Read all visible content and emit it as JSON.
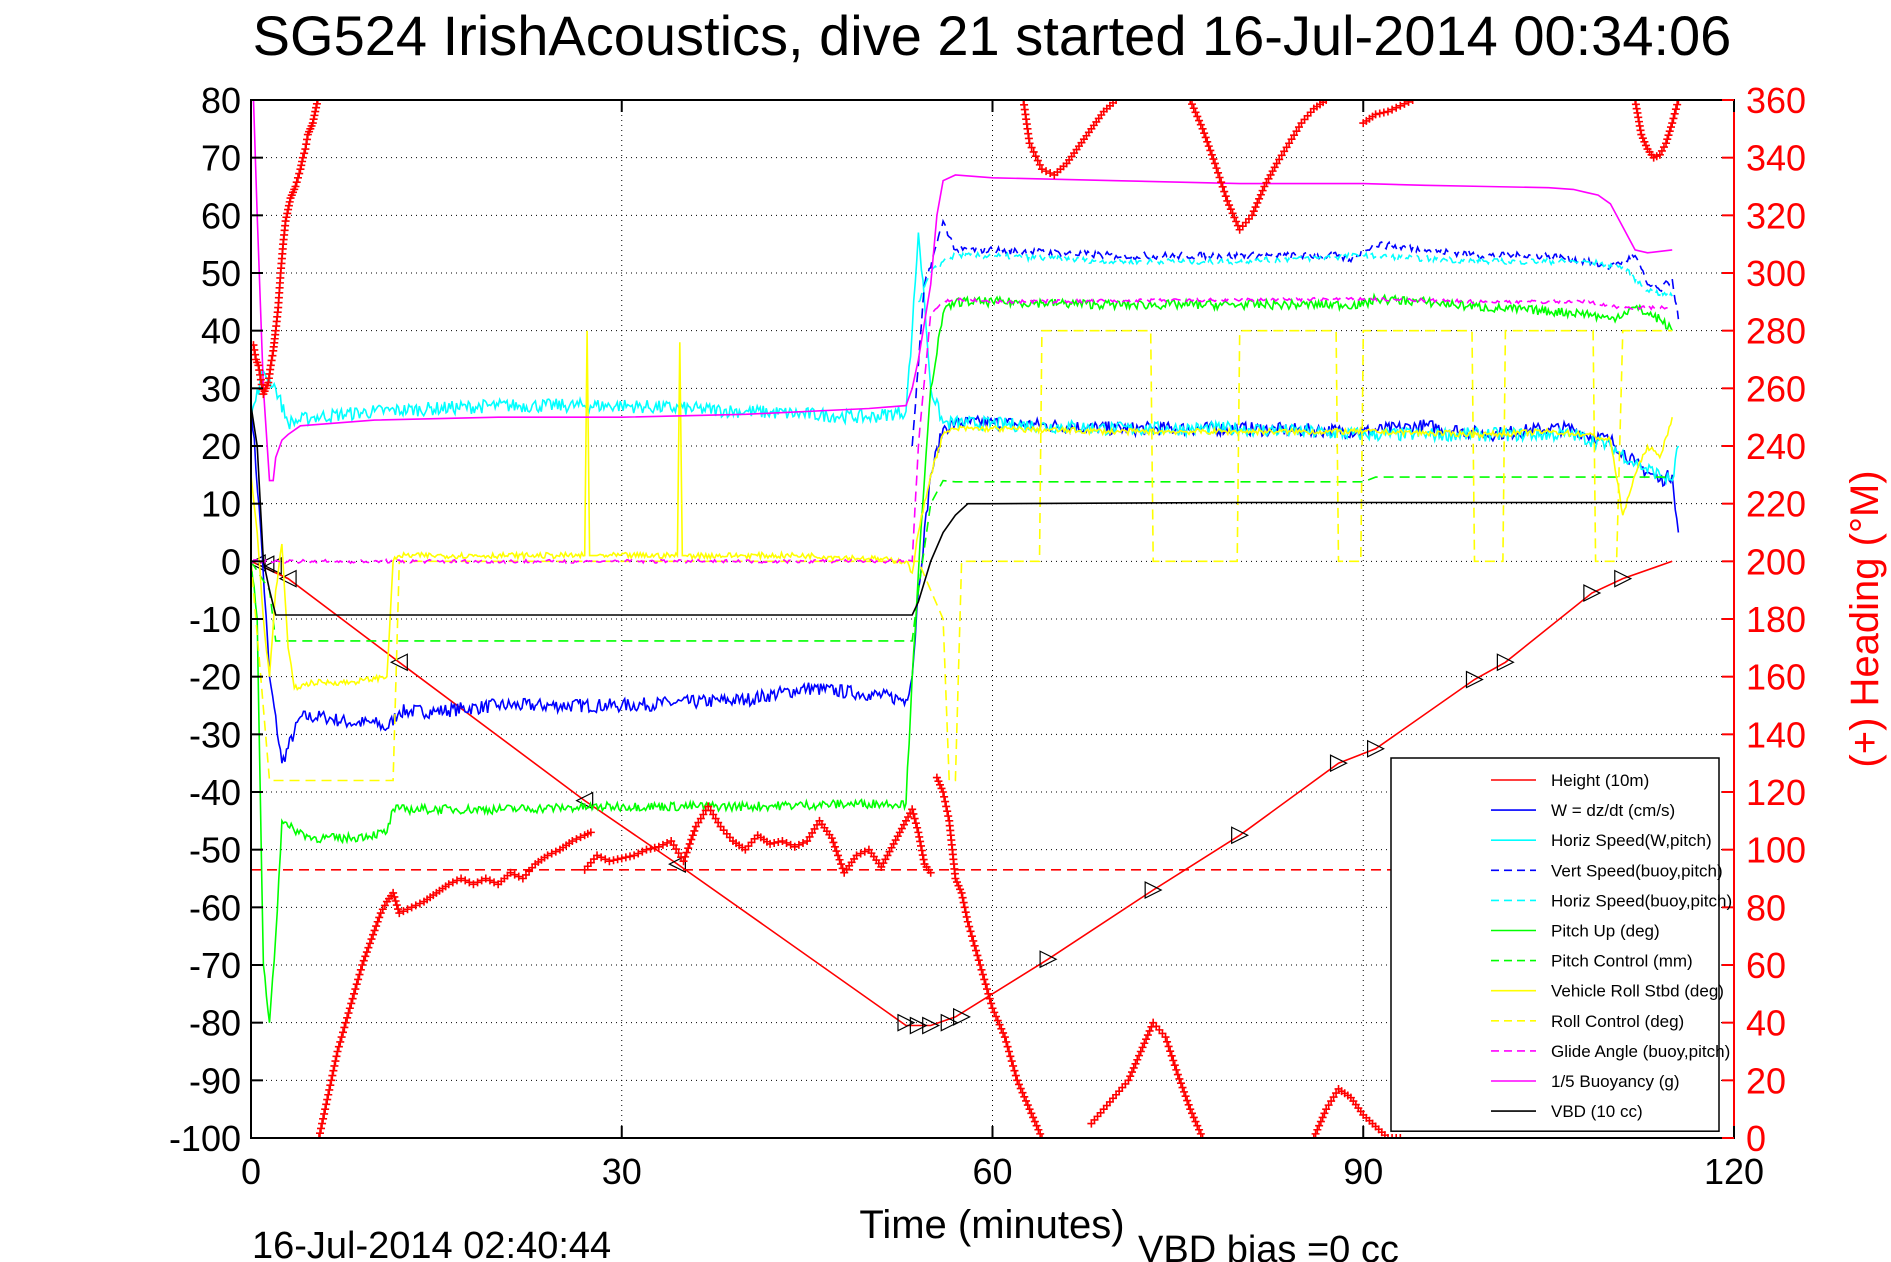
{
  "chart_data": {
    "type": "line",
    "title": "SG524 IrishAcoustics, dive 21 started 16-Jul-2014 00:34:06",
    "xlabel": "Time (minutes)",
    "ylabel": "",
    "y2label": "(+) Heading (°M)",
    "footer_left": "16-Jul-2014 02:40:44",
    "footer_right": "VBD bias =0 cc",
    "xlim": [
      0,
      120
    ],
    "ylim": [
      -100,
      80
    ],
    "y2lim": [
      0,
      360
    ],
    "xticks": [
      "0",
      "30",
      "60",
      "90",
      "120"
    ],
    "yticks": [
      "80",
      "70",
      "60",
      "50",
      "40",
      "30",
      "20",
      "10",
      "0",
      "-10",
      "-20",
      "-30",
      "-40",
      "-50",
      "-60",
      "-70",
      "-80",
      "-90",
      "-100"
    ],
    "y2ticks": [
      "360",
      "340",
      "320",
      "300",
      "280",
      "260",
      "240",
      "220",
      "200",
      "180",
      "160",
      "140",
      "120",
      "100",
      "80",
      "60",
      "40",
      "20",
      "0"
    ],
    "grid": true,
    "legend_position": "bottom-right",
    "series": [
      {
        "name": "Height (10m)",
        "color": "#ff0000",
        "dash": "solid",
        "x": [
          0,
          0.5,
          1,
          3,
          12,
          27,
          34.5,
          53,
          55,
          57,
          64.5,
          73,
          80,
          88,
          91,
          99,
          101.5,
          108.5,
          111,
          115
        ],
        "y": [
          0,
          -0.5,
          -1,
          -3,
          -17.5,
          -41.5,
          -52.5,
          -80.5,
          -80.5,
          -79,
          -69,
          -57,
          -47.5,
          -35,
          -32.5,
          -20.5,
          -17.5,
          -5.5,
          -3,
          0
        ],
        "marker_x": [
          0.5,
          1.2,
          1.8,
          3,
          12,
          27,
          34.5,
          53,
          54,
          55,
          56.5,
          57.5,
          64.5,
          73,
          80,
          88,
          91,
          99,
          101.5,
          108.5,
          111
        ],
        "marker_y": [
          -0.3,
          -0.5,
          -0.8,
          -3,
          -17.5,
          -41.5,
          -52.5,
          -80,
          -80.5,
          -80.5,
          -80,
          -79,
          -69,
          -57,
          -47.5,
          -35,
          -32.5,
          -20.5,
          -17.5,
          -5.5,
          -3
        ]
      },
      {
        "name": "W = dz/dt (cm/s)",
        "color": "#0000ff",
        "dash": "solid",
        "x": [
          0,
          0.8,
          1.5,
          2.5,
          4,
          6,
          8,
          10,
          11,
          12,
          15,
          20,
          30,
          40,
          45,
          50,
          53,
          53.5,
          54,
          55,
          56,
          57,
          60,
          70,
          80,
          90,
          95,
          100,
          105,
          107,
          108,
          110,
          112,
          114,
          115,
          115.5
        ],
        "y": [
          28,
          5,
          -20,
          -35,
          -27,
          -27,
          -28,
          -28,
          -29,
          -26,
          -26,
          -25,
          -25,
          -24,
          -22,
          -23,
          -24,
          -20,
          -5,
          15,
          23,
          24,
          24,
          23,
          23,
          22.5,
          23.5,
          22,
          23,
          23,
          22,
          21,
          17,
          14,
          15,
          5
        ],
        "jitter": 1.2
      },
      {
        "name": "Horiz Speed(W,pitch)",
        "color": "#00ffff",
        "dash": "solid",
        "x": [
          0,
          1,
          2,
          3,
          5,
          10,
          20,
          30,
          40,
          50,
          53,
          53.5,
          54,
          54.5,
          55,
          56,
          58,
          70,
          80,
          90,
          100,
          107,
          110,
          112,
          114,
          115,
          115.5
        ],
        "y": [
          25,
          33,
          30,
          24,
          25,
          26,
          27,
          27,
          26,
          25,
          26,
          40,
          57,
          45,
          30,
          24,
          24,
          23,
          23,
          22,
          22,
          22,
          20,
          17,
          15,
          14,
          20
        ],
        "jitter": 1.2
      },
      {
        "name": "Vert Speed(buoy,pitch)",
        "color": "#0000ff",
        "dash": "dashed",
        "x": [
          53.5,
          54.5,
          55.5,
          56,
          57,
          60,
          70,
          80,
          88,
          89,
          90,
          91,
          95,
          100,
          105,
          108,
          110,
          112,
          113,
          114,
          115,
          115.5
        ],
        "y": [
          20,
          48,
          55,
          59,
          54,
          54,
          53,
          53,
          53,
          52,
          54,
          55,
          54,
          53,
          53,
          52,
          51,
          53,
          48,
          47,
          49,
          42
        ],
        "jitter": 0.6
      },
      {
        "name": "Horiz Speed(buoy,pitch)",
        "color": "#00ffff",
        "dash": "dashed",
        "x": [
          54,
          55,
          56,
          57,
          60,
          70,
          80,
          90,
          100,
          108,
          111,
          113,
          115
        ],
        "y": [
          45,
          50,
          52,
          53,
          53,
          52,
          52,
          53,
          52,
          52,
          51,
          47,
          46
        ],
        "jitter": 0.5
      },
      {
        "name": "Pitch Up (deg)",
        "color": "#00ff00",
        "dash": "solid",
        "x": [
          0,
          0.5,
          1,
          1.5,
          2,
          2.5,
          3,
          5,
          8,
          11,
          11.5,
          12,
          20,
          30,
          40,
          50,
          53,
          53.5,
          54,
          55,
          56,
          57,
          60,
          70,
          80,
          90,
          91,
          95,
          100,
          108,
          110,
          112,
          114,
          115
        ],
        "y": [
          0,
          -10,
          -70,
          -80,
          -65,
          -45,
          -46,
          -48,
          -48,
          -47,
          -43,
          -43,
          -43,
          -42.5,
          -42.5,
          -42,
          -42,
          -20,
          -2,
          30,
          43,
          45,
          45,
          44.5,
          44.5,
          44.5,
          45.5,
          45,
          44,
          43,
          42,
          44,
          42,
          40
        ],
        "jitter": 0.8
      },
      {
        "name": "Pitch Control (mm)",
        "color": "#00ff00",
        "dash": "dashed",
        "x": [
          0,
          1.5,
          2,
          53.5,
          54,
          55,
          56,
          57,
          90,
          91,
          115
        ],
        "y": [
          0,
          -5,
          -13.8,
          -13.8,
          -5,
          10,
          14,
          13.8,
          13.8,
          14.6,
          14.6
        ]
      },
      {
        "name": "Vehicle Roll Stbd (deg)",
        "color": "#ffff00",
        "dash": "solid",
        "x": [
          0,
          0.5,
          1,
          1.5,
          2,
          2.5,
          3,
          3.5,
          5,
          8,
          11,
          11.5,
          12,
          27,
          27.2,
          27.4,
          27.6,
          28,
          34.5,
          34.7,
          34.9,
          35.2,
          40,
          45,
          50,
          53,
          53.5,
          54,
          55,
          56,
          57,
          60,
          70,
          80,
          90,
          100,
          105,
          108,
          110,
          111,
          112,
          113,
          114,
          115
        ],
        "y": [
          15,
          5,
          -10,
          -20,
          -5,
          3,
          -15,
          -22,
          -21,
          -21,
          -20,
          0,
          1,
          1,
          40,
          1,
          1,
          1,
          1,
          38,
          1,
          1,
          1,
          1,
          0.5,
          0,
          -2,
          5,
          15,
          22,
          23,
          23,
          22.5,
          22.5,
          22.5,
          22,
          22.5,
          22,
          21,
          8,
          15,
          20,
          18,
          25
        ],
        "jitter": 0.5
      },
      {
        "name": "Roll Control (deg)",
        "color": "#ffff00",
        "dash": "dashed",
        "x": [
          0,
          1.5,
          2,
          11.5,
          12,
          54,
          55,
          56,
          56.5,
          57,
          57.5,
          63.8,
          64,
          72.8,
          73,
          79.8,
          80,
          87.8,
          88,
          89.8,
          90,
          98.8,
          99,
          101.3,
          101.5,
          108.6,
          108.8,
          110.5,
          111,
          115
        ],
        "y": [
          0,
          -38,
          -38,
          -38,
          0,
          0,
          -5,
          -10,
          -38,
          -38,
          0,
          0,
          40,
          40,
          0,
          0,
          40,
          40,
          0,
          0,
          40,
          40,
          0,
          0,
          40,
          40,
          0,
          0,
          40,
          40
        ]
      },
      {
        "name": "Glide Angle (buoy,pitch)",
        "color": "#ff00ff",
        "dash": "dashed",
        "x": [
          0,
          53.5,
          54,
          55,
          56,
          57,
          60,
          90,
          100,
          108,
          111,
          115
        ],
        "y": [
          0,
          0,
          20,
          43,
          45,
          45.5,
          45,
          45.5,
          45,
          45,
          44,
          44
        ],
        "jitter": 0.3
      },
      {
        "name": "1/5 Buoyancy (g)",
        "color": "#ff00ff",
        "dash": "solid",
        "x": [
          0.2,
          0.5,
          1,
          1.5,
          1.8,
          2,
          2.5,
          3,
          4,
          10,
          20,
          30,
          40,
          50,
          53,
          53.5,
          54,
          55,
          55.5,
          56,
          57,
          60,
          70,
          80,
          90,
          95,
          100,
          105,
          107,
          108,
          109,
          110,
          111,
          112,
          113,
          115
        ],
        "y": [
          80,
          60,
          30,
          14,
          14,
          18,
          21,
          22,
          23.5,
          24.5,
          25,
          25,
          25.5,
          26.5,
          27,
          30,
          35,
          48,
          60,
          66,
          67,
          66.5,
          66,
          65.5,
          65.5,
          65.2,
          65,
          64.8,
          64.5,
          64,
          63.5,
          62,
          58,
          54,
          53.5,
          54
        ]
      },
      {
        "name": "VBD (10 cc)",
        "color": "#000000",
        "dash": "solid",
        "x": [
          0,
          0.5,
          1,
          1.5,
          2,
          53.5,
          54,
          55,
          56,
          57,
          58,
          60,
          80,
          90,
          115
        ],
        "y": [
          27,
          20,
          0,
          -5,
          -9.3,
          -9.3,
          -7,
          0,
          5,
          8,
          10,
          10,
          10.2,
          10.2,
          10.2
        ]
      },
      {
        "name": "",
        "color": "#ff0000",
        "dash": "dashed",
        "x": [
          0,
          115
        ],
        "y": [
          -53.5,
          -53.5
        ]
      }
    ],
    "heading": {
      "name": "Heading",
      "color": "#ff0000",
      "marker": "+",
      "segments": [
        {
          "x": [
            0.2,
            0.4,
            0.6,
            0.8,
            1.0,
            1.2,
            1.4,
            1.6,
            1.8,
            2.0,
            2.2,
            2.4,
            2.6,
            2.8,
            3.0,
            3.2,
            3.4,
            3.6,
            3.8,
            4.0,
            4.2,
            4.4,
            4.6,
            4.8,
            5.0,
            5.2,
            5.4
          ],
          "y": [
            275,
            270,
            268,
            263,
            258,
            260,
            262,
            268,
            273,
            280,
            288,
            300,
            310,
            318,
            322,
            326,
            328,
            330,
            333,
            336,
            340,
            343,
            348,
            350,
            352,
            356,
            360
          ]
        },
        {
          "x": [
            5.5,
            6,
            7,
            8,
            9,
            10,
            10.5,
            11,
            11.5,
            12,
            13,
            14,
            15,
            16,
            17,
            18,
            19,
            20,
            21,
            22,
            23,
            24,
            25,
            26,
            27,
            27.5
          ],
          "y": [
            0,
            10,
            30,
            45,
            60,
            72,
            78,
            82,
            85,
            78,
            80,
            82,
            85,
            88,
            90,
            88,
            90,
            88,
            92,
            90,
            95,
            98,
            100,
            103,
            105,
            106
          ]
        },
        {
          "x": [
            27,
            28,
            29,
            30,
            31,
            32,
            33,
            34,
            35,
            36,
            37,
            38,
            39,
            40,
            41,
            42,
            43,
            44,
            45,
            46,
            47,
            48,
            49,
            50,
            51,
            52,
            53,
            53.5,
            54,
            54.5,
            55
          ],
          "y": [
            93,
            98,
            96,
            97,
            98,
            100,
            101,
            103,
            96,
            108,
            115,
            108,
            103,
            100,
            105,
            102,
            103,
            101,
            103,
            110,
            104,
            92,
            98,
            100,
            94,
            102,
            110,
            114,
            106,
            95,
            92
          ]
        },
        {
          "x": [
            55.5,
            56,
            56.5,
            57,
            57.5,
            58,
            59,
            60,
            61,
            62,
            63,
            64
          ],
          "y": [
            125,
            120,
            110,
            90,
            85,
            75,
            60,
            45,
            35,
            20,
            10,
            0
          ]
        },
        {
          "x": [
            62.5,
            63,
            64,
            65,
            66,
            67,
            68,
            69,
            70
          ],
          "y": [
            360,
            345,
            336,
            334,
            338,
            344,
            350,
            356,
            360
          ]
        },
        {
          "x": [
            68,
            69,
            70,
            71,
            72,
            73,
            74,
            75,
            76,
            77
          ],
          "y": [
            5,
            10,
            15,
            20,
            30,
            40,
            35,
            22,
            10,
            0
          ]
        },
        {
          "x": [
            76,
            77,
            78,
            79,
            80,
            81,
            82,
            83,
            84,
            85,
            86,
            87
          ],
          "y": [
            360,
            350,
            338,
            325,
            315,
            320,
            330,
            338,
            345,
            352,
            357,
            360
          ]
        },
        {
          "x": [
            86,
            87,
            88,
            89,
            90,
            91,
            92,
            93
          ],
          "y": [
            0,
            10,
            17,
            14,
            8,
            4,
            0,
            0
          ]
        },
        {
          "x": [
            90,
            91,
            92,
            93,
            94
          ],
          "y": [
            352,
            355,
            356,
            358,
            360
          ]
        },
        {
          "x": [
            112,
            112.5,
            113,
            113.5,
            114,
            114.5,
            115,
            115.5
          ],
          "y": [
            360,
            348,
            343,
            340,
            341,
            345,
            352,
            360
          ]
        }
      ]
    }
  }
}
